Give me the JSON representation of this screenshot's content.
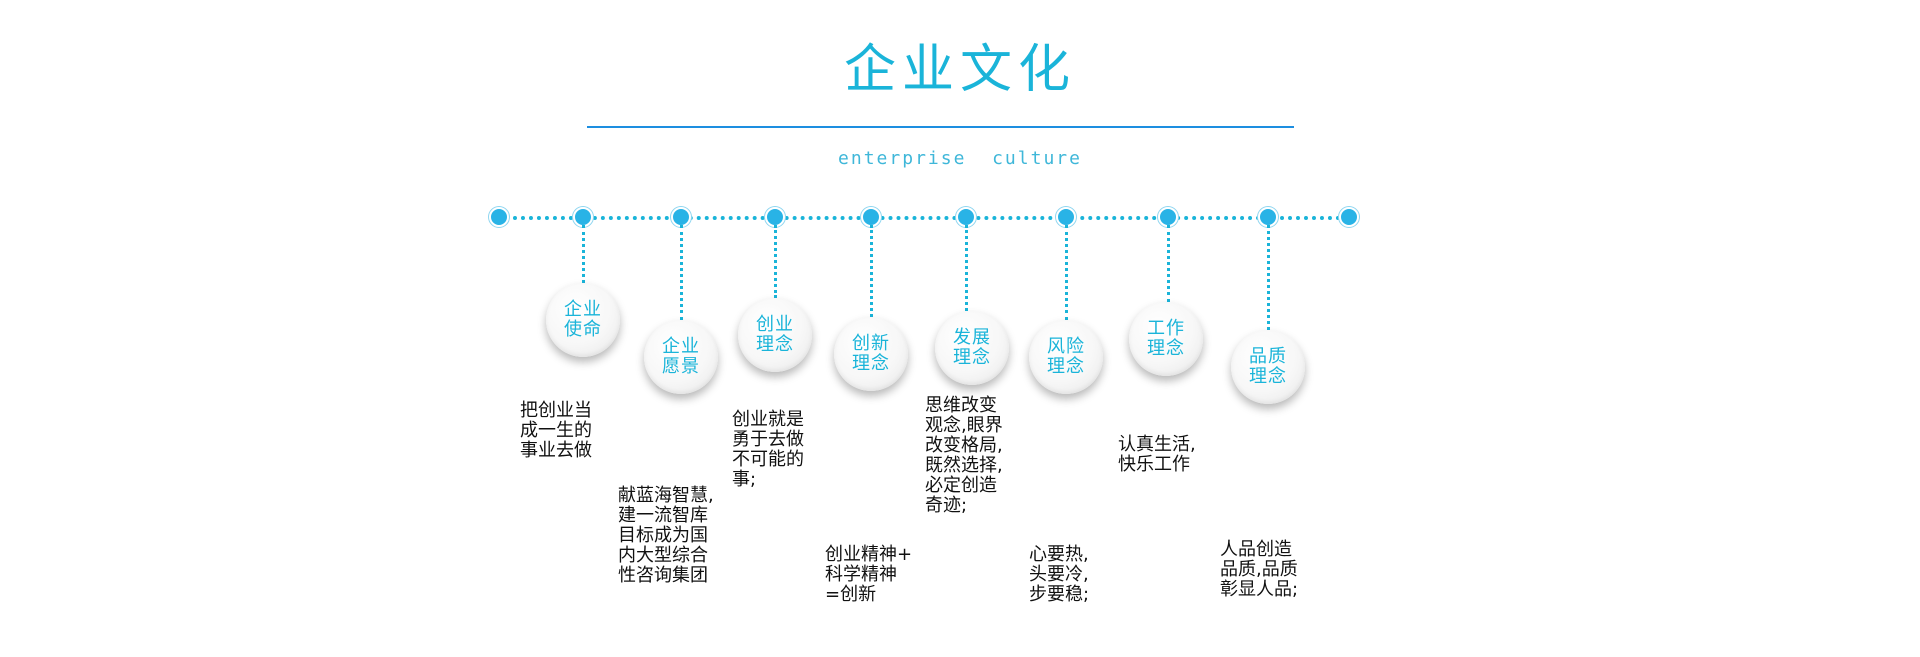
{
  "title": "企业文化",
  "subtitle": "enterprise  culture",
  "colors": {
    "accent": "#1ab4d9",
    "rule": "#1d8ee0",
    "text": "#111111"
  },
  "items": [
    {
      "label": [
        "企业",
        "使命"
      ],
      "desc": [
        "把创业当",
        "成一生的",
        "事业去做"
      ]
    },
    {
      "label": [
        "企业",
        "愿景"
      ],
      "desc": [
        "献蓝海智慧,",
        "建一流智库",
        "目标成为国",
        "内大型综合",
        "性咨询集团"
      ]
    },
    {
      "label": [
        "创业",
        "理念"
      ],
      "desc": [
        "创业就是",
        "勇于去做",
        "不可能的",
        "事;"
      ]
    },
    {
      "label": [
        "创新",
        "理念"
      ],
      "desc": [
        "创业精神+",
        "科学精神",
        "=创新"
      ]
    },
    {
      "label": [
        "发展",
        "理念"
      ],
      "desc": [
        "思维改变",
        "观念,眼界",
        "改变格局,",
        "既然选择,",
        "必定创造",
        "奇迹;"
      ]
    },
    {
      "label": [
        "风险",
        "理念"
      ],
      "desc": [
        "心要热,",
        "头要冷,",
        "步要稳;"
      ]
    },
    {
      "label": [
        "工作",
        "理念"
      ],
      "desc": [
        "认真生活,",
        "快乐工作"
      ]
    },
    {
      "label": [
        "品质",
        "理念"
      ],
      "desc": [
        "人品创造",
        "品质,品质",
        "彰显人品;"
      ]
    }
  ]
}
